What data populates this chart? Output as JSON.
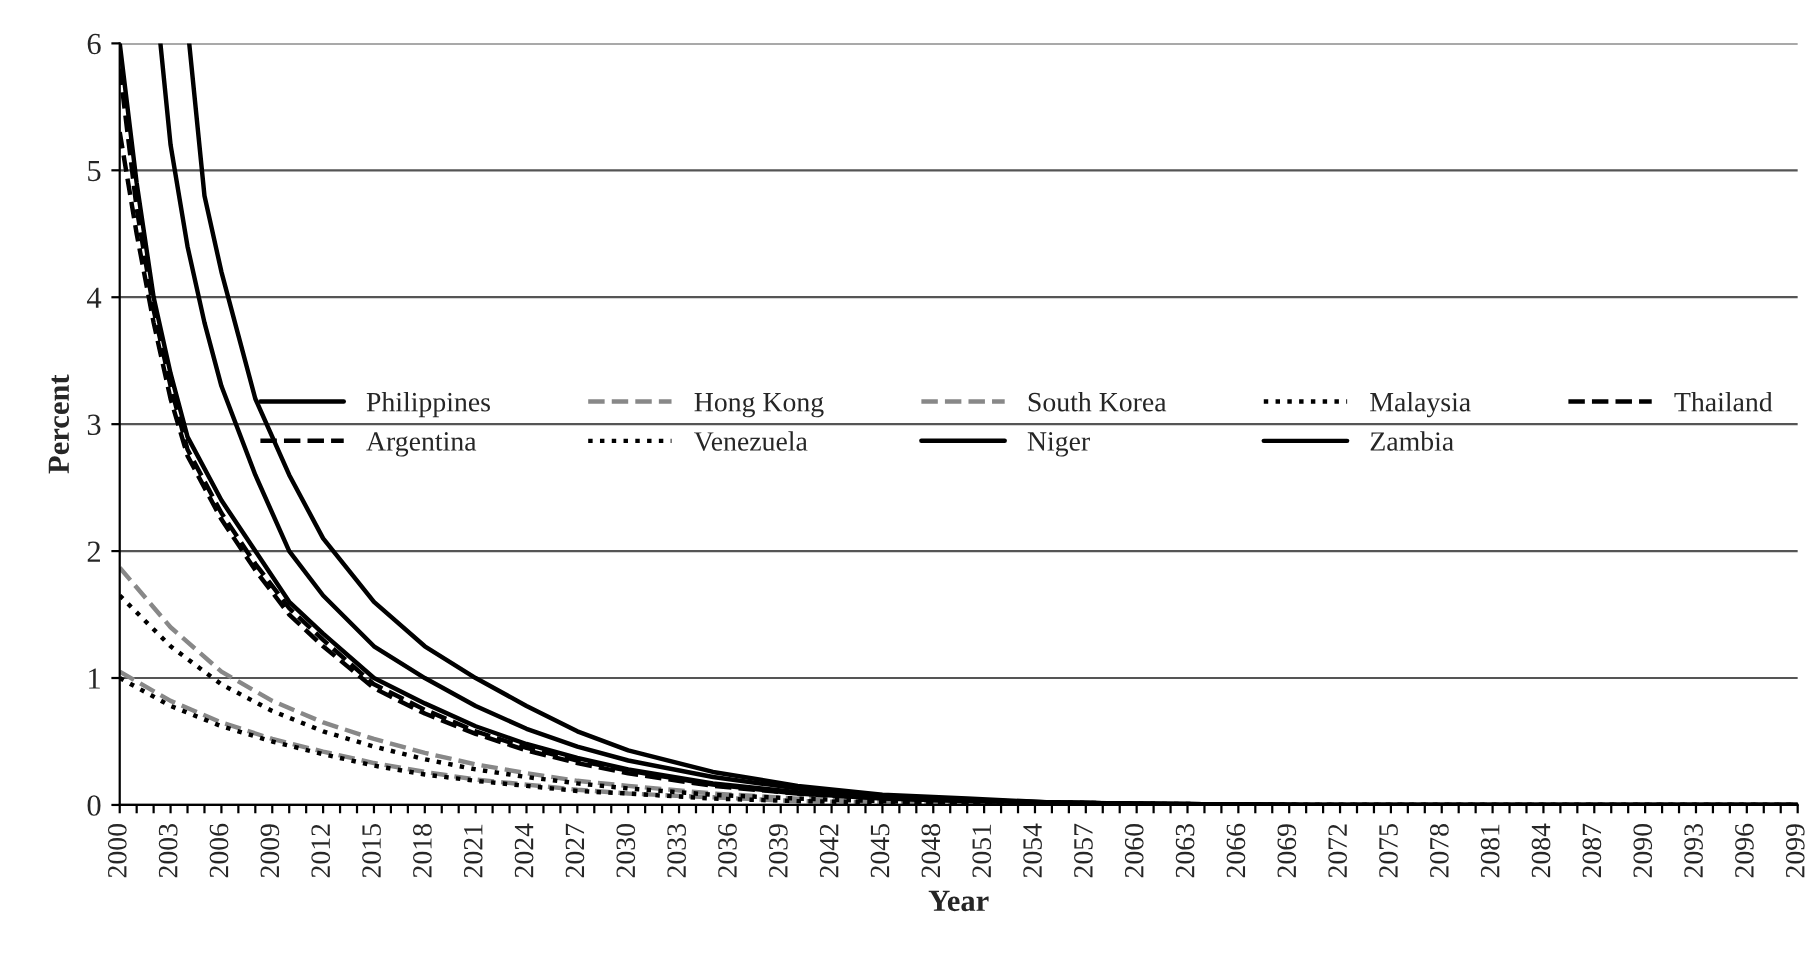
{
  "chart_data": {
    "type": "line",
    "xlabel": "Year",
    "ylabel": "Percent",
    "xlim": [
      2000,
      2099
    ],
    "ylim": [
      0,
      6
    ],
    "yticks": [
      0,
      1,
      2,
      3,
      4,
      5,
      6
    ],
    "xticks": [
      2000,
      {
        "value": 2001,
        "label": null
      },
      {
        "value": 2002,
        "label": null
      },
      2003,
      {
        "value": 2004,
        "label": null
      },
      {
        "value": 2005,
        "label": null
      },
      2006,
      {
        "value": 2007,
        "label": null
      },
      {
        "value": 2008,
        "label": null
      },
      2009,
      {
        "value": 2010,
        "label": null
      },
      {
        "value": 2011,
        "label": null
      },
      2012,
      {
        "value": 2013,
        "label": null
      },
      {
        "value": 2014,
        "label": null
      },
      2015,
      {
        "value": 2016,
        "label": null
      },
      {
        "value": 2017,
        "label": null
      },
      2018,
      {
        "value": 2019,
        "label": null
      },
      {
        "value": 2020,
        "label": null
      },
      2021,
      {
        "value": 2022,
        "label": null
      },
      {
        "value": 2023,
        "label": null
      },
      2024,
      {
        "value": 2025,
        "label": null
      },
      {
        "value": 2026,
        "label": null
      },
      2027,
      {
        "value": 2028,
        "label": null
      },
      {
        "value": 2029,
        "label": null
      },
      2030,
      {
        "value": 2031,
        "label": null
      },
      {
        "value": 2032,
        "label": null
      },
      2033,
      {
        "value": 2034,
        "label": null
      },
      {
        "value": 2035,
        "label": null
      },
      2036,
      {
        "value": 2037,
        "label": null
      },
      {
        "value": 2038,
        "label": null
      },
      2039,
      {
        "value": 2040,
        "label": null
      },
      {
        "value": 2041,
        "label": null
      },
      2042,
      {
        "value": 2043,
        "label": null
      },
      {
        "value": 2044,
        "label": null
      },
      2045,
      {
        "value": 2046,
        "label": null
      },
      {
        "value": 2047,
        "label": null
      },
      2048,
      {
        "value": 2049,
        "label": null
      },
      {
        "value": 2050,
        "label": null
      },
      2051,
      {
        "value": 2052,
        "label": null
      },
      {
        "value": 2053,
        "label": null
      },
      2054,
      {
        "value": 2055,
        "label": null
      },
      {
        "value": 2056,
        "label": null
      },
      2057,
      {
        "value": 2058,
        "label": null
      },
      {
        "value": 2059,
        "label": null
      },
      2060,
      {
        "value": 2061,
        "label": null
      },
      {
        "value": 2062,
        "label": null
      },
      2063,
      {
        "value": 2064,
        "label": null
      },
      {
        "value": 2065,
        "label": null
      },
      2066,
      {
        "value": 2067,
        "label": null
      },
      {
        "value": 2068,
        "label": null
      },
      2069,
      {
        "value": 2070,
        "label": null
      },
      {
        "value": 2071,
        "label": null
      },
      2072,
      {
        "value": 2073,
        "label": null
      },
      {
        "value": 2074,
        "label": null
      },
      2075,
      {
        "value": 2076,
        "label": null
      },
      {
        "value": 2077,
        "label": null
      },
      2078,
      {
        "value": 2079,
        "label": null
      },
      {
        "value": 2080,
        "label": null
      },
      2081,
      {
        "value": 2082,
        "label": null
      },
      {
        "value": 2083,
        "label": null
      },
      2084,
      {
        "value": 2085,
        "label": null
      },
      {
        "value": 2086,
        "label": null
      },
      2087,
      {
        "value": 2088,
        "label": null
      },
      {
        "value": 2089,
        "label": null
      },
      2090,
      {
        "value": 2091,
        "label": null
      },
      {
        "value": 2092,
        "label": null
      },
      2093,
      {
        "value": 2094,
        "label": null
      },
      {
        "value": 2095,
        "label": null
      },
      2096,
      {
        "value": 2097,
        "label": null
      },
      {
        "value": 2098,
        "label": null
      },
      2099
    ],
    "grid": "y",
    "legend": "center right",
    "series": [
      {
        "name": "Philippines",
        "color": "#000000",
        "line_style": "solid",
        "x": [
          2000,
          2001,
          2002,
          2003,
          2004,
          2006,
          2008,
          2010,
          2012,
          2015,
          2018,
          2021,
          2024,
          2027,
          2030,
          2035,
          2040,
          2045,
          2050,
          2055,
          2060,
          2070,
          2080,
          2099
        ],
        "values": [
          6.0,
          4.9,
          4.0,
          3.4,
          2.9,
          2.4,
          2.0,
          1.6,
          1.35,
          1.0,
          0.8,
          0.62,
          0.48,
          0.37,
          0.28,
          0.17,
          0.1,
          0.06,
          0.03,
          0.02,
          0.01,
          0.0,
          0.0,
          0.0
        ]
      },
      {
        "name": "Hong Kong",
        "color": "#888888",
        "line_style": "dashed",
        "x": [
          2000,
          2003,
          2006,
          2009,
          2012,
          2015,
          2018,
          2021,
          2024,
          2027,
          2030,
          2035,
          2040,
          2045,
          2050,
          2060,
          2070,
          2099
        ],
        "values": [
          1.05,
          0.82,
          0.65,
          0.52,
          0.42,
          0.33,
          0.26,
          0.2,
          0.16,
          0.12,
          0.09,
          0.06,
          0.03,
          0.02,
          0.01,
          0.0,
          0.0,
          0.0
        ]
      },
      {
        "name": "South Korea",
        "color": "#888888",
        "line_style": "dashed",
        "x": [
          2000,
          2003,
          2006,
          2009,
          2012,
          2015,
          2018,
          2021,
          2024,
          2027,
          2030,
          2035,
          2040,
          2045,
          2050,
          2060,
          2070,
          2080,
          2099
        ],
        "values": [
          1.87,
          1.4,
          1.05,
          0.82,
          0.65,
          0.52,
          0.41,
          0.32,
          0.25,
          0.19,
          0.15,
          0.09,
          0.05,
          0.03,
          0.02,
          0.0,
          0.0,
          0.0,
          0.0
        ]
      },
      {
        "name": "Malaysia",
        "color": "#000000",
        "line_style": "dotted",
        "x": [
          2000,
          2003,
          2006,
          2009,
          2012,
          2015,
          2018,
          2021,
          2024,
          2027,
          2030,
          2035,
          2040,
          2045,
          2050,
          2060,
          2070,
          2080,
          2099
        ],
        "values": [
          1.65,
          1.25,
          0.95,
          0.74,
          0.58,
          0.46,
          0.36,
          0.28,
          0.22,
          0.17,
          0.13,
          0.08,
          0.05,
          0.03,
          0.01,
          0.0,
          0.0,
          0.0,
          0.0
        ]
      },
      {
        "name": "Thailand",
        "color": "#000000",
        "line_style": "dashed",
        "x": [
          2000,
          2001,
          2002,
          2003,
          2004,
          2006,
          2008,
          2010,
          2012,
          2015,
          2018,
          2021,
          2024,
          2027,
          2030,
          2035,
          2040,
          2045,
          2050,
          2060,
          2070,
          2099
        ],
        "values": [
          5.3,
          4.5,
          3.8,
          3.2,
          2.75,
          2.25,
          1.85,
          1.5,
          1.25,
          0.92,
          0.72,
          0.56,
          0.43,
          0.33,
          0.25,
          0.15,
          0.09,
          0.05,
          0.03,
          0.01,
          0.0,
          0.0
        ]
      },
      {
        "name": "Argentina",
        "color": "#000000",
        "line_style": "dashed",
        "x": [
          2000,
          2001,
          2002,
          2003,
          2004,
          2006,
          2008,
          2010,
          2012,
          2015,
          2018,
          2021,
          2024,
          2027,
          2030,
          2035,
          2040,
          2045,
          2050,
          2060,
          2070,
          2099
        ],
        "values": [
          5.8,
          4.7,
          3.9,
          3.3,
          2.8,
          2.3,
          1.9,
          1.55,
          1.3,
          0.95,
          0.75,
          0.58,
          0.45,
          0.35,
          0.27,
          0.16,
          0.09,
          0.05,
          0.03,
          0.01,
          0.0,
          0.0
        ]
      },
      {
        "name": "Venezuela",
        "color": "#000000",
        "line_style": "dotted",
        "x": [
          2000,
          2003,
          2006,
          2009,
          2012,
          2015,
          2018,
          2021,
          2024,
          2027,
          2030,
          2035,
          2040,
          2045,
          2050,
          2060,
          2070,
          2099
        ],
        "values": [
          1.0,
          0.78,
          0.62,
          0.5,
          0.4,
          0.31,
          0.24,
          0.19,
          0.15,
          0.11,
          0.09,
          0.05,
          0.03,
          0.02,
          0.01,
          0.0,
          0.0,
          0.0
        ]
      },
      {
        "name": "Niger",
        "color": "#000000",
        "line_style": "solid",
        "x": [
          2004.1,
          2005,
          2006,
          2007,
          2008,
          2010,
          2012,
          2015,
          2018,
          2021,
          2024,
          2027,
          2030,
          2035,
          2040,
          2045,
          2050,
          2055,
          2060,
          2070,
          2080,
          2099
        ],
        "values": [
          6.0,
          4.8,
          4.2,
          3.7,
          3.2,
          2.6,
          2.1,
          1.6,
          1.25,
          1.0,
          0.78,
          0.58,
          0.43,
          0.26,
          0.15,
          0.08,
          0.05,
          0.02,
          0.01,
          0.0,
          0.0,
          0.0
        ]
      },
      {
        "name": "Zambia",
        "color": "#000000",
        "line_style": "solid",
        "x": [
          2002.4,
          2003,
          2004,
          2005,
          2006,
          2008,
          2010,
          2012,
          2015,
          2018,
          2021,
          2024,
          2027,
          2030,
          2035,
          2040,
          2045,
          2050,
          2055,
          2060,
          2070,
          2080,
          2099
        ],
        "values": [
          6.0,
          5.2,
          4.4,
          3.8,
          3.3,
          2.6,
          2.0,
          1.65,
          1.25,
          1.0,
          0.78,
          0.6,
          0.46,
          0.35,
          0.22,
          0.13,
          0.07,
          0.04,
          0.02,
          0.01,
          0.0,
          0.0,
          0.0
        ]
      }
    ]
  }
}
